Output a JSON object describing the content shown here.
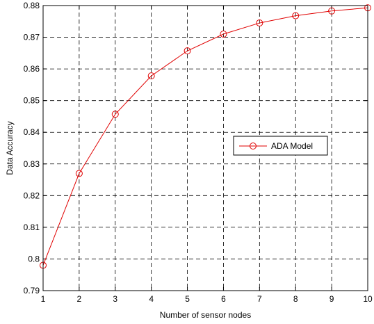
{
  "chart_data": {
    "type": "line",
    "title": "",
    "xlabel": "Number of sensor nodes",
    "ylabel": "Data Accuracy",
    "xlim": [
      1,
      10
    ],
    "ylim": [
      0.79,
      0.88
    ],
    "x_ticks": [
      1,
      2,
      3,
      4,
      5,
      6,
      7,
      8,
      9,
      10
    ],
    "y_ticks": [
      "0.79",
      "0.8",
      "0.81",
      "0.82",
      "0.83",
      "0.84",
      "0.85",
      "0.86",
      "0.87",
      "0.88"
    ],
    "grid": true,
    "legend_position": "center-right",
    "series": [
      {
        "name": "ADA Model",
        "color": "#e00000",
        "marker": "circle",
        "x": [
          1,
          2,
          3,
          4,
          5,
          6,
          7,
          8,
          9,
          10
        ],
        "y": [
          0.798,
          0.827,
          0.8457,
          0.8578,
          0.8657,
          0.871,
          0.8745,
          0.8768,
          0.8783,
          0.8793
        ]
      }
    ]
  }
}
